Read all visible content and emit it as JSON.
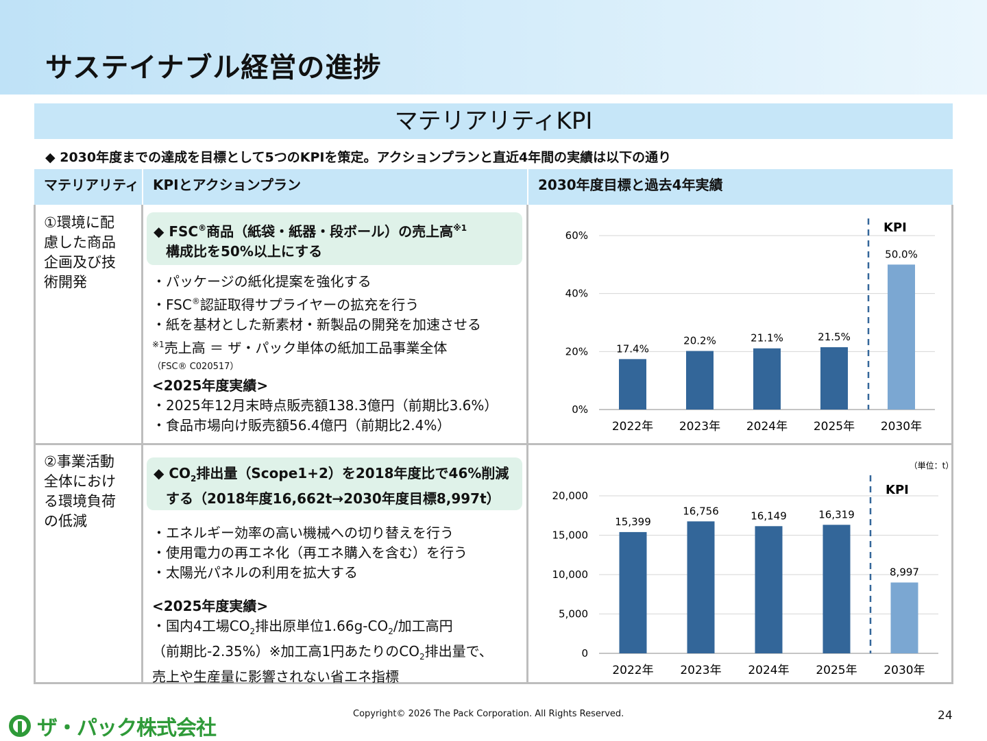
{
  "page_title": "サステイナブル経営の進捗",
  "section_title": "マテリアリティKPI",
  "intro": "◆ 2030年度までの達成を目標として5つのKPIを策定。アクションプランと直近4年間の実績は以下の通り",
  "columns": [
    "マテリアリティ",
    "KPIとアクションプラン",
    "2030年度目標と過去4年実績"
  ],
  "rows": [
    {
      "materiality": [
        "①環境に配",
        "慮した商品",
        "企画及び技",
        "術開発"
      ],
      "kpi_line1_a": "◆ FSC",
      "kpi_reg": "®",
      "kpi_line1_b": "商品（紙袋・紙器・段ボール）の売上高",
      "kpi_note_mark": "※1",
      "kpi_line2": "構成比を50%以上にする",
      "actions": [
        "・パッケージの紙化提案を強化する"
      ],
      "action2_a": "・FSC",
      "action2_reg": "®",
      "action2_b": "認証取得サプライヤーの拡充を行う",
      "action3": "・紙を基材とした新素材・新製品の開発を加速させる",
      "note_mark": "※1",
      "note_text": "売上高 ＝ ザ・パック単体の紙加工品事業全体",
      "fsc_code": "（FSC® C020517）",
      "result_heading": "<2025年度実績>",
      "results": [
        "・2025年12月末時点販売額138.3億円（前期比3.6%）",
        "・食品市場向け販売額56.4億円（前期比2.4%）"
      ]
    },
    {
      "materiality": [
        "②事業活動",
        "全体におけ",
        "る環境負荷",
        "の低減"
      ],
      "kpi1_a": "◆ CO",
      "kpi1_sub": "2",
      "kpi1_b": "排出量（Scope1+2）を2018年度比で46%削減",
      "kpi2": "する（2018年度16,662t→2030年度目標8,997t）",
      "actions": [
        "・エネルギー効率の高い機械への切り替えを行う",
        "・使用電力の再エネ化（再エネ購入を含む）を行う",
        "・太陽光パネルの利用を拡大する"
      ],
      "result_heading": "<2025年度実績>",
      "res1_a": "・国内4工場CO",
      "res1_sub1": "2",
      "res1_b": "排出原単位1.66g-CO",
      "res1_sub2": "2",
      "res1_c": "/加工高円",
      "res2_a": "（前期比-2.35%）※加工高1円あたりのCO",
      "res2_sub": "2",
      "res2_b": "排出量で、",
      "res3": "売上や生産量に影響されない省エネ指標"
    }
  ],
  "chart_data": [
    {
      "type": "bar",
      "categories": [
        "2022年",
        "2023年",
        "2024年",
        "2025年",
        "2030年"
      ],
      "values": [
        17.4,
        20.2,
        21.1,
        21.5,
        50.0
      ],
      "value_labels": [
        "17.4%",
        "20.2%",
        "21.1%",
        "21.5%",
        "50.0%"
      ],
      "yticks": [
        "0%",
        "20%",
        "40%",
        "60%"
      ],
      "ylim": [
        0,
        60
      ],
      "kpi_label": "KPI",
      "unit_label": "",
      "colors": {
        "actual": "#336699",
        "target": "#7ba7d2"
      }
    },
    {
      "type": "bar",
      "categories": [
        "2022年",
        "2023年",
        "2024年",
        "2025年",
        "2030年"
      ],
      "values": [
        15399,
        16756,
        16149,
        16319,
        8997
      ],
      "value_labels": [
        "15,399",
        "16,756",
        "16,149",
        "16,319",
        "8,997"
      ],
      "yticks": [
        "0",
        "5,000",
        "10,000",
        "15,000",
        "20,000"
      ],
      "ylim": [
        0,
        20000
      ],
      "kpi_label": "KPI",
      "unit_label": "（単位：t）",
      "colors": {
        "actual": "#336699",
        "target": "#7ba7d2"
      }
    }
  ],
  "copyright": "Copyright© 2026 The Pack Corporation. All Rights Reserved.",
  "page_number": "24",
  "logo_text": "ザ・パック株式会社"
}
